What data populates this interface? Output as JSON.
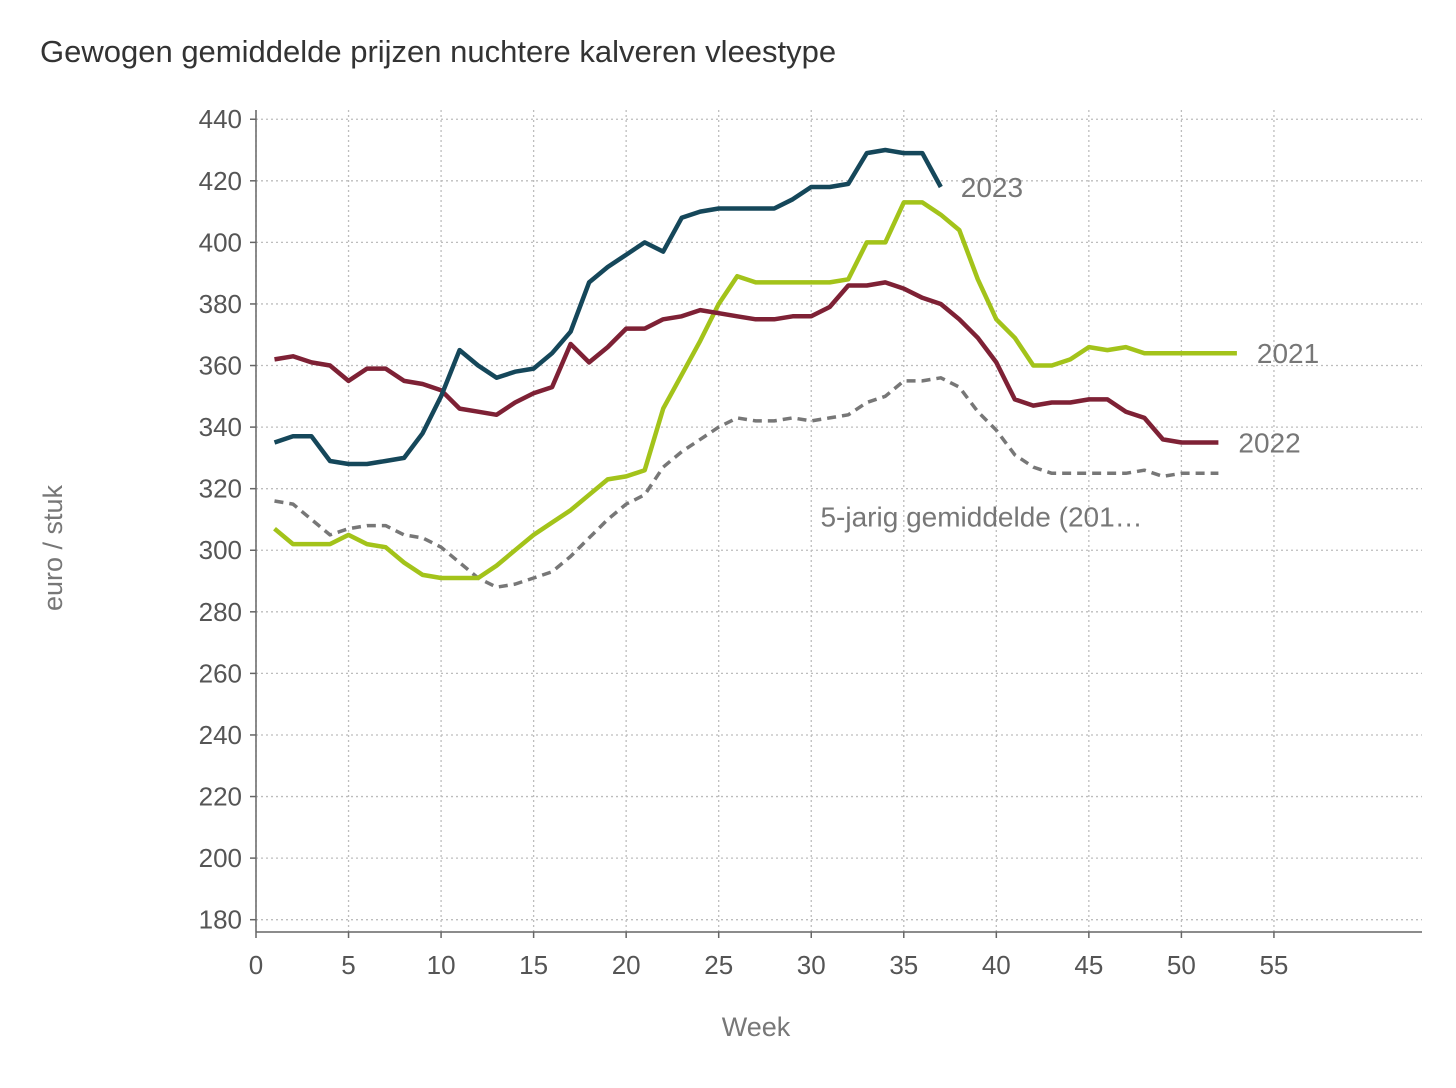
{
  "chart_data": {
    "type": "line",
    "title": "Gewogen gemiddelde prijzen nuchtere kalveren vleestype",
    "xlabel": "Week",
    "ylabel": "euro / stuk",
    "xlim": [
      0,
      63
    ],
    "ylim": [
      176,
      443
    ],
    "x_ticks": [
      0,
      5,
      10,
      15,
      20,
      25,
      30,
      35,
      40,
      45,
      50,
      55
    ],
    "y_ticks": [
      180,
      200,
      220,
      240,
      260,
      280,
      300,
      320,
      340,
      360,
      380,
      400,
      420,
      440
    ],
    "grid": true,
    "legend": "none",
    "series": [
      {
        "name": "5-jarig gemiddelde (201…",
        "color": "#777777",
        "dashed": true,
        "x": [
          1,
          2,
          3,
          4,
          5,
          6,
          7,
          8,
          9,
          10,
          11,
          12,
          13,
          14,
          15,
          16,
          17,
          18,
          19,
          20,
          21,
          22,
          23,
          24,
          25,
          26,
          27,
          28,
          29,
          30,
          31,
          32,
          33,
          34,
          35,
          36,
          37,
          38,
          39,
          40,
          41,
          42,
          43,
          44,
          45,
          46,
          47,
          48,
          49,
          50,
          51,
          52
        ],
        "values": [
          316,
          315,
          310,
          305,
          307,
          308,
          308,
          305,
          304,
          301,
          296,
          291,
          288,
          289,
          291,
          293,
          298,
          304,
          310,
          315,
          318,
          327,
          332,
          336,
          340,
          343,
          342,
          342,
          343,
          342,
          343,
          344,
          348,
          350,
          355,
          355,
          356,
          353,
          345,
          339,
          331,
          327,
          325,
          325,
          325,
          325,
          325,
          326,
          324,
          325,
          325,
          325
        ]
      },
      {
        "name": "2021",
        "color": "#a3c31a",
        "dashed": false,
        "x": [
          1,
          2,
          3,
          4,
          5,
          6,
          7,
          8,
          9,
          10,
          11,
          12,
          13,
          14,
          15,
          16,
          17,
          18,
          19,
          20,
          21,
          22,
          23,
          24,
          25,
          26,
          27,
          28,
          29,
          30,
          31,
          32,
          33,
          34,
          35,
          36,
          37,
          38,
          39,
          40,
          41,
          42,
          43,
          44,
          45,
          46,
          47,
          48,
          49,
          50,
          51,
          52,
          53
        ],
        "values": [
          307,
          302,
          302,
          302,
          305,
          302,
          301,
          296,
          292,
          291,
          291,
          291,
          295,
          300,
          305,
          309,
          313,
          318,
          323,
          324,
          326,
          346,
          357,
          368,
          380,
          389,
          387,
          387,
          387,
          387,
          387,
          388,
          400,
          400,
          413,
          413,
          409,
          404,
          388,
          375,
          369,
          360,
          360,
          362,
          366,
          365,
          366,
          364,
          364,
          364,
          364,
          364,
          364
        ]
      },
      {
        "name": "2022",
        "color": "#7e2135",
        "dashed": false,
        "x": [
          1,
          2,
          3,
          4,
          5,
          6,
          7,
          8,
          9,
          10,
          11,
          12,
          13,
          14,
          15,
          16,
          17,
          18,
          19,
          20,
          21,
          22,
          23,
          24,
          25,
          26,
          27,
          28,
          29,
          30,
          31,
          32,
          33,
          34,
          35,
          36,
          37,
          38,
          39,
          40,
          41,
          42,
          43,
          44,
          45,
          46,
          47,
          48,
          49,
          50,
          51,
          52
        ],
        "values": [
          362,
          363,
          361,
          360,
          355,
          359,
          359,
          355,
          354,
          352,
          346,
          345,
          344,
          348,
          351,
          353,
          367,
          361,
          366,
          372,
          372,
          375,
          376,
          378,
          377,
          376,
          375,
          375,
          376,
          376,
          379,
          386,
          386,
          387,
          385,
          382,
          380,
          375,
          369,
          361,
          349,
          347,
          348,
          348,
          349,
          349,
          345,
          343,
          336,
          335,
          335,
          335
        ]
      },
      {
        "name": "2023",
        "color": "#15475a",
        "dashed": false,
        "x": [
          1,
          2,
          3,
          4,
          5,
          6,
          7,
          8,
          9,
          10,
          11,
          12,
          13,
          14,
          15,
          16,
          17,
          18,
          19,
          20,
          21,
          22,
          23,
          24,
          25,
          26,
          27,
          28,
          29,
          30,
          31,
          32,
          33,
          34,
          35,
          36,
          37
        ],
        "values": [
          335,
          337,
          337,
          329,
          328,
          328,
          329,
          330,
          338,
          350,
          365,
          360,
          356,
          358,
          359,
          364,
          371,
          387,
          392,
          396,
          400,
          397,
          408,
          410,
          411,
          411,
          411,
          411,
          414,
          418,
          418,
          419,
          429,
          430,
          429,
          429,
          418
        ]
      }
    ]
  }
}
